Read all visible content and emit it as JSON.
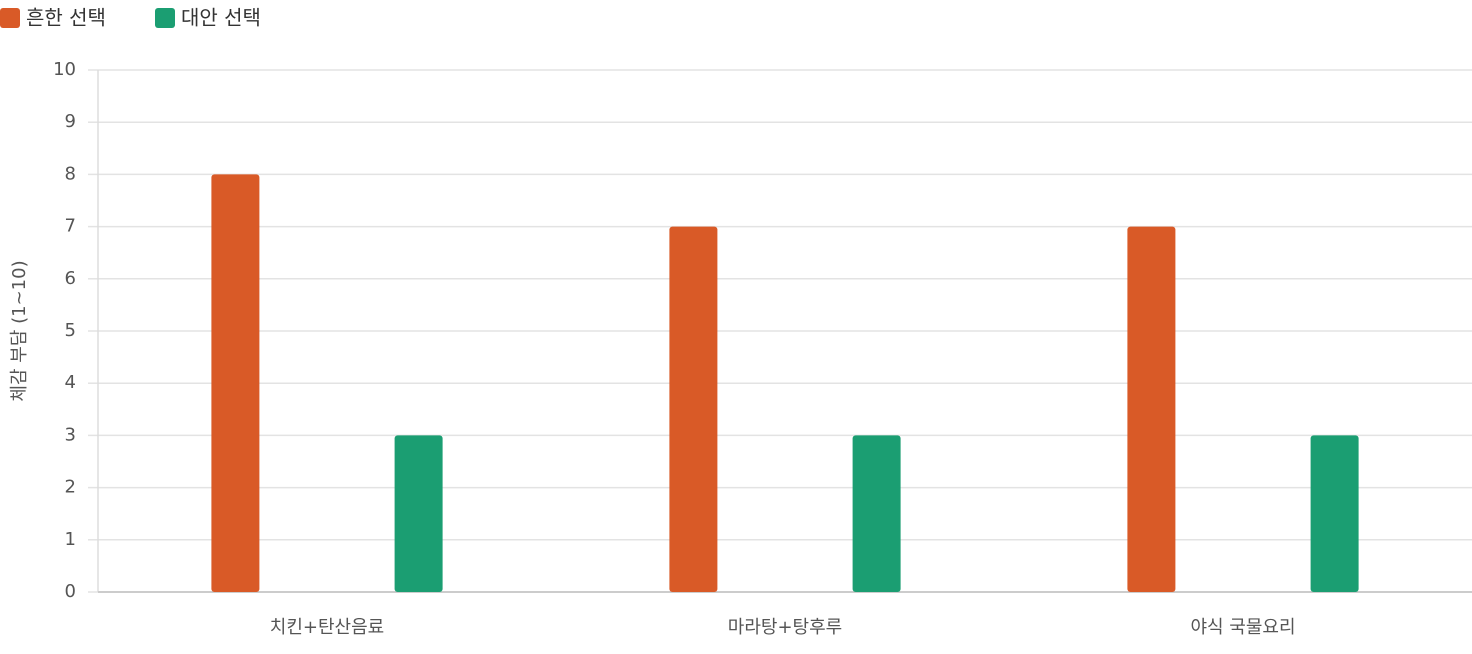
{
  "chart_data": {
    "type": "bar",
    "y_label": "체감 부담 (1~10)",
    "categories": [
      "치킨+탄산음료",
      "마라탕+탕후루",
      "야식 국물요리"
    ],
    "series": [
      {
        "name": "흔한 선택",
        "color": "#d95a27",
        "values": [
          8,
          7,
          7
        ]
      },
      {
        "name": "대안 선택",
        "color": "#1b9e72",
        "values": [
          3,
          3,
          3
        ]
      }
    ],
    "ylim": [
      0,
      10
    ],
    "yticks": [
      0,
      1,
      2,
      3,
      4,
      5,
      6,
      7,
      8,
      9,
      10
    ],
    "grid": true,
    "legend": "top-left"
  }
}
